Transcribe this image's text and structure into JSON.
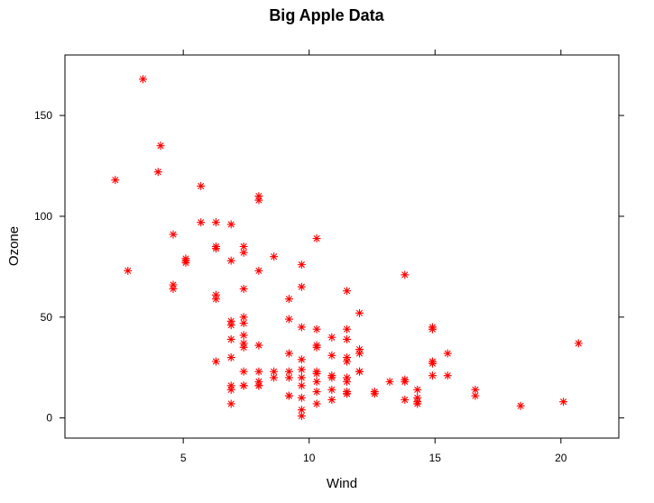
{
  "chart_data": {
    "type": "scatter",
    "title": "Big Apple Data",
    "xlabel": "Wind",
    "ylabel": "Ozone",
    "xlim": [
      0.3,
      22.3
    ],
    "ylim": [
      -10,
      180
    ],
    "x_ticks": [
      5,
      10,
      15,
      20
    ],
    "y_ticks": [
      0,
      50,
      100,
      150
    ],
    "grid": false,
    "marker": "asterisk",
    "marker_color": "#ff0000",
    "series": [
      {
        "x": [
          2.3,
          2.8,
          3.4,
          4.0,
          4.1,
          4.6,
          4.6,
          4.6,
          5.1,
          5.1,
          5.1,
          5.7,
          5.7,
          6.3,
          6.3,
          6.3,
          6.3,
          6.3,
          6.3,
          6.9,
          6.9,
          6.9,
          6.9,
          6.9,
          6.9,
          6.9,
          6.9,
          6.9,
          7.4,
          7.4,
          7.4,
          7.4,
          7.4,
          7.4,
          7.4,
          7.4,
          7.4,
          7.4,
          7.4,
          8.0,
          8.0,
          8.0,
          8.0,
          8.0,
          8.0,
          8.0,
          8.0,
          8.6,
          8.6,
          8.6,
          9.2,
          9.2,
          9.2,
          9.2,
          9.2,
          9.2,
          9.2,
          9.7,
          9.7,
          9.7,
          9.7,
          9.7,
          9.7,
          9.7,
          9.7,
          9.7,
          9.7,
          10.3,
          10.3,
          10.3,
          10.3,
          10.3,
          10.3,
          10.3,
          10.3,
          10.3,
          10.9,
          10.9,
          10.9,
          10.9,
          10.9,
          10.9,
          11.5,
          11.5,
          11.5,
          11.5,
          11.5,
          11.5,
          11.5,
          11.5,
          11.5,
          11.5,
          12.0,
          12.0,
          12.0,
          12.0,
          12.0,
          12.6,
          12.6,
          13.2,
          13.8,
          13.8,
          13.8,
          13.8,
          14.3,
          14.3,
          14.3,
          14.3,
          14.9,
          14.9,
          14.9,
          14.9,
          14.9,
          15.5,
          15.5,
          16.6,
          16.6,
          18.4,
          20.1,
          20.7
        ],
        "y": [
          118,
          73,
          168,
          122,
          135,
          91,
          66,
          64,
          79,
          78,
          77,
          115,
          97,
          97,
          85,
          84,
          61,
          59,
          28,
          96,
          78,
          48,
          46,
          39,
          30,
          16,
          14,
          7,
          85,
          82,
          64,
          50,
          47,
          41,
          37,
          35,
          23,
          16,
          16,
          110,
          108,
          73,
          36,
          23,
          18,
          16,
          16,
          80,
          23,
          20,
          59,
          49,
          32,
          23,
          20,
          11,
          11,
          76,
          65,
          45,
          29,
          24,
          20,
          16,
          10,
          4,
          1,
          89,
          44,
          36,
          35,
          23,
          22,
          18,
          13,
          7,
          40,
          31,
          21,
          20,
          14,
          9,
          63,
          44,
          39,
          30,
          28,
          20,
          18,
          13,
          12,
          12,
          52,
          34,
          32,
          23,
          23,
          13,
          12,
          18,
          71,
          19,
          18,
          9,
          14,
          10,
          8,
          7,
          45,
          44,
          28,
          27,
          21,
          32,
          21,
          14,
          11,
          6,
          8,
          37
        ]
      }
    ]
  }
}
